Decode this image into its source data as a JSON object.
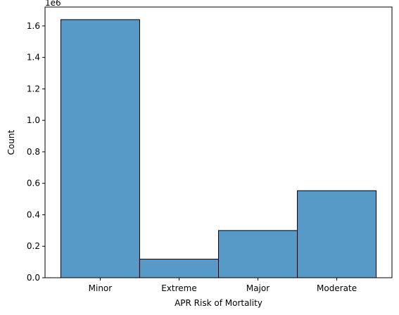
{
  "chart_data": {
    "type": "bar",
    "title": "",
    "xlabel": "APR Risk of Mortality",
    "ylabel": "Count",
    "y_offset_label": "1e6",
    "categories": [
      "Minor",
      "Extreme",
      "Major",
      "Moderate"
    ],
    "values": [
      1640000,
      118000,
      300000,
      553000
    ],
    "ylim": [
      0,
      1720000
    ],
    "yticks": [
      0,
      200000,
      400000,
      600000,
      800000,
      1000000,
      1200000,
      1400000,
      1600000
    ],
    "ytick_labels": [
      "0.0",
      "0.2",
      "0.4",
      "0.6",
      "0.8",
      "1.0",
      "1.2",
      "1.4",
      "1.6"
    ],
    "grid": false,
    "bar_color": "#5799c7",
    "edge_color": "#000000"
  }
}
